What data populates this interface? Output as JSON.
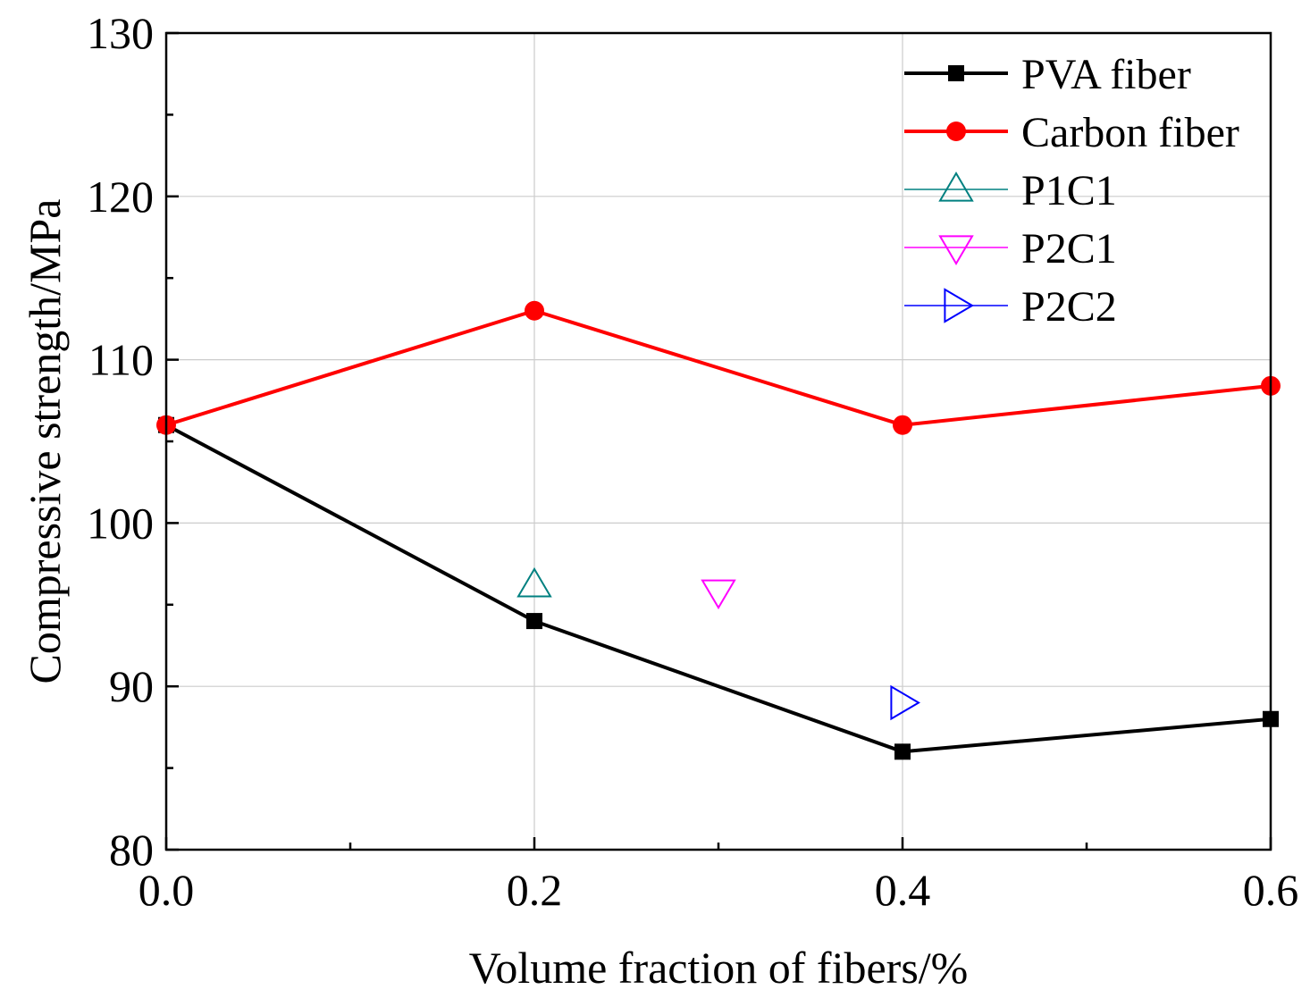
{
  "chart_data": {
    "type": "line",
    "xlabel": "Volume fraction of fibers/%",
    "ylabel": "Compressive strength/MPa",
    "xlim": [
      0.0,
      0.6
    ],
    "ylim": [
      80,
      130
    ],
    "xticks": [
      0.0,
      0.2,
      0.4,
      0.6
    ],
    "xtick_labels": [
      "0.0",
      "0.2",
      "0.4",
      "0.6"
    ],
    "xminor": [
      0.1,
      0.3,
      0.5
    ],
    "yticks": [
      80,
      90,
      100,
      110,
      120,
      130
    ],
    "ytick_labels": [
      "80",
      "90",
      "100",
      "110",
      "120",
      "130"
    ],
    "yminor": [
      85,
      95,
      105,
      115,
      125
    ],
    "grid": true,
    "legend_position": "top-right",
    "series": [
      {
        "name": "PVA fiber",
        "x": [
          0.0,
          0.2,
          0.4,
          0.6
        ],
        "values": [
          106,
          94,
          86,
          88
        ],
        "color": "#000000",
        "marker": "square",
        "line": true
      },
      {
        "name": "Carbon fiber",
        "x": [
          0.0,
          0.2,
          0.4,
          0.6
        ],
        "values": [
          106,
          113,
          106,
          108.4
        ],
        "color": "#ff0000",
        "marker": "circle",
        "line": true
      },
      {
        "name": "P1C1",
        "x": [
          0.2
        ],
        "values": [
          96.2
        ],
        "color": "#008080",
        "marker": "triangle-up",
        "line": false
      },
      {
        "name": "P2C1",
        "x": [
          0.3
        ],
        "values": [
          95.8
        ],
        "color": "#ff00ff",
        "marker": "triangle-down",
        "line": false
      },
      {
        "name": "P2C2",
        "x": [
          0.4
        ],
        "values": [
          89
        ],
        "color": "#0000ff",
        "marker": "triangle-right",
        "line": false
      }
    ]
  }
}
